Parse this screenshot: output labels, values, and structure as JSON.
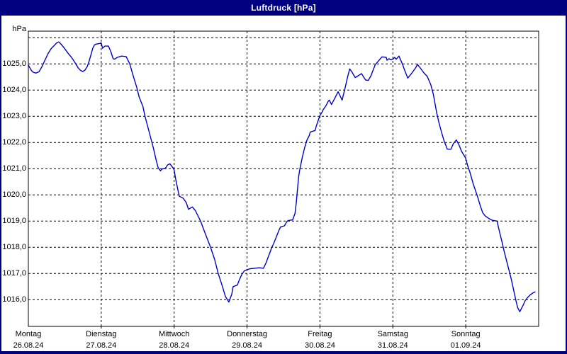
{
  "window": {
    "title": "Luftdruck [hPa]"
  },
  "colors": {
    "frame": "#000080",
    "title_text": "#FFFFFF",
    "background": "#FFFFFF",
    "plot_border": "#000000",
    "grid": "#000000",
    "text": "#000000",
    "curve": "#0000CD"
  },
  "chart_data": {
    "type": "line",
    "title": "Luftdruck [hPa]",
    "unit_label": "hPa",
    "ylabel": "hPa",
    "xlabel": "",
    "ylim": [
      1015.0,
      1026.25
    ],
    "x_range_hours": [
      0,
      168
    ],
    "grid": "dashed",
    "legend": "none",
    "y_gridlines": [
      1026,
      1025,
      1024,
      1023,
      1022,
      1021,
      1020,
      1019,
      1018,
      1017,
      1016
    ],
    "y_ticks": [
      {
        "value": 1025,
        "label": "1025,0"
      },
      {
        "value": 1024,
        "label": "1024,0"
      },
      {
        "value": 1023,
        "label": "1023,0"
      },
      {
        "value": 1022,
        "label": "1022,0"
      },
      {
        "value": 1021,
        "label": "1021,0"
      },
      {
        "value": 1020,
        "label": "1020,0"
      },
      {
        "value": 1019,
        "label": "1019,0"
      },
      {
        "value": 1018,
        "label": "1018,0"
      },
      {
        "value": 1017,
        "label": "1017,0"
      },
      {
        "value": 1016,
        "label": "1016,0"
      }
    ],
    "x_ticks": [
      {
        "day_index": 0,
        "weekday": "Montag",
        "date": "26.08.24"
      },
      {
        "day_index": 1,
        "weekday": "Dienstag",
        "date": "27.08.24"
      },
      {
        "day_index": 2,
        "weekday": "Mittwoch",
        "date": "28.08.24"
      },
      {
        "day_index": 3,
        "weekday": "Donnerstag",
        "date": "29.08.24"
      },
      {
        "day_index": 4,
        "weekday": "Freitag",
        "date": "30.08.24"
      },
      {
        "day_index": 5,
        "weekday": "Samstag",
        "date": "31.08.24"
      },
      {
        "day_index": 6,
        "weekday": "Sonntag",
        "date": "01.09.24"
      }
    ],
    "series": [
      {
        "name": "Luftdruck",
        "unit": "hPa",
        "color": "#0000CD",
        "points": [
          [
            0,
            1024.95
          ],
          [
            1,
            1024.75
          ],
          [
            1.6,
            1024.68
          ],
          [
            2.5,
            1024.65
          ],
          [
            3.5,
            1024.7
          ],
          [
            4.5,
            1024.9
          ],
          [
            5.5,
            1025.15
          ],
          [
            6.5,
            1025.4
          ],
          [
            7.5,
            1025.58
          ],
          [
            8.5,
            1025.7
          ],
          [
            9.3,
            1025.8
          ],
          [
            10,
            1025.84
          ],
          [
            10.8,
            1025.75
          ],
          [
            12,
            1025.58
          ],
          [
            13,
            1025.42
          ],
          [
            14,
            1025.28
          ],
          [
            14.8,
            1025.15
          ],
          [
            15.6,
            1025.0
          ],
          [
            16.4,
            1024.85
          ],
          [
            17.2,
            1024.75
          ],
          [
            17.9,
            1024.71
          ],
          [
            18.6,
            1024.76
          ],
          [
            19.4,
            1024.9
          ],
          [
            20,
            1025.1
          ],
          [
            20.6,
            1025.35
          ],
          [
            21.2,
            1025.6
          ],
          [
            21.8,
            1025.73
          ],
          [
            22.5,
            1025.76
          ],
          [
            23.4,
            1025.78
          ],
          [
            24,
            1025.8
          ],
          [
            24.4,
            1025.6
          ],
          [
            25.2,
            1025.68
          ],
          [
            26.4,
            1025.68
          ],
          [
            27.2,
            1025.45
          ],
          [
            27.9,
            1025.2
          ],
          [
            28.4,
            1025.18
          ],
          [
            29.3,
            1025.25
          ],
          [
            30.7,
            1025.3
          ],
          [
            32.2,
            1025.28
          ],
          [
            33.4,
            1025.0
          ],
          [
            34.5,
            1024.55
          ],
          [
            35.7,
            1024.1
          ],
          [
            36.5,
            1023.73
          ],
          [
            37.7,
            1023.38
          ],
          [
            38.4,
            1023.0
          ],
          [
            39.6,
            1022.48
          ],
          [
            40.4,
            1022.13
          ],
          [
            41.2,
            1021.77
          ],
          [
            41.9,
            1021.41
          ],
          [
            42.7,
            1021.05
          ],
          [
            43.5,
            1020.92
          ],
          [
            43.9,
            1020.98
          ],
          [
            45.1,
            1021.02
          ],
          [
            45.8,
            1021.14
          ],
          [
            46.6,
            1021.19
          ],
          [
            47.8,
            1021.0
          ],
          [
            48,
            1020.95
          ],
          [
            48.5,
            1020.6
          ],
          [
            49.4,
            1020.1
          ],
          [
            49.7,
            1019.95
          ],
          [
            51,
            1019.87
          ],
          [
            52,
            1019.7
          ],
          [
            52.7,
            1019.45
          ],
          [
            54,
            1019.54
          ],
          [
            55,
            1019.4
          ],
          [
            56.7,
            1019.0
          ],
          [
            58.3,
            1018.5
          ],
          [
            60,
            1018.0
          ],
          [
            61.3,
            1017.55
          ],
          [
            62.5,
            1017.0
          ],
          [
            63.9,
            1016.5
          ],
          [
            64.9,
            1016.12
          ],
          [
            66,
            1015.91
          ],
          [
            67,
            1016.22
          ],
          [
            67.4,
            1016.5
          ],
          [
            68.8,
            1016.56
          ],
          [
            69.5,
            1016.77
          ],
          [
            70.3,
            1016.97
          ],
          [
            71.1,
            1017.1
          ],
          [
            72,
            1017.15
          ],
          [
            73,
            1017.18
          ],
          [
            74.5,
            1017.2
          ],
          [
            76,
            1017.22
          ],
          [
            77.4,
            1017.2
          ],
          [
            78.3,
            1017.42
          ],
          [
            79.2,
            1017.7
          ],
          [
            80,
            1017.95
          ],
          [
            80.9,
            1018.18
          ],
          [
            82,
            1018.5
          ],
          [
            82.7,
            1018.7
          ],
          [
            83.1,
            1018.78
          ],
          [
            84.3,
            1018.82
          ],
          [
            85.1,
            1018.98
          ],
          [
            85.5,
            1019.02
          ],
          [
            87,
            1019.05
          ],
          [
            87.8,
            1019.3
          ],
          [
            88.2,
            1019.7
          ],
          [
            88.6,
            1020.2
          ],
          [
            89.0,
            1020.7
          ],
          [
            89.3,
            1020.93
          ],
          [
            90.1,
            1021.38
          ],
          [
            90.9,
            1021.78
          ],
          [
            91.7,
            1022.09
          ],
          [
            92.5,
            1022.27
          ],
          [
            92.8,
            1022.4
          ],
          [
            94.4,
            1022.46
          ],
          [
            94.8,
            1022.63
          ],
          [
            95.6,
            1022.9
          ],
          [
            96,
            1023.03
          ],
          [
            96.7,
            1023.16
          ],
          [
            97.1,
            1023.26
          ],
          [
            97.9,
            1023.39
          ],
          [
            98.7,
            1023.57
          ],
          [
            99.1,
            1023.62
          ],
          [
            99.8,
            1023.45
          ],
          [
            100.7,
            1023.65
          ],
          [
            102,
            1023.94
          ],
          [
            103.3,
            1023.62
          ],
          [
            104.2,
            1024.05
          ],
          [
            105.1,
            1024.5
          ],
          [
            105.8,
            1024.81
          ],
          [
            106.5,
            1024.7
          ],
          [
            107.6,
            1024.48
          ],
          [
            108.6,
            1024.55
          ],
          [
            109.7,
            1024.63
          ],
          [
            111,
            1024.39
          ],
          [
            111.9,
            1024.37
          ],
          [
            112.8,
            1024.55
          ],
          [
            114.2,
            1024.97
          ],
          [
            115,
            1025.08
          ],
          [
            115.9,
            1025.2
          ],
          [
            116.4,
            1025.27
          ],
          [
            117.8,
            1025.25
          ],
          [
            118.1,
            1025.14
          ],
          [
            118.7,
            1025.2
          ],
          [
            119.3,
            1025.16
          ],
          [
            120,
            1025.18
          ],
          [
            120.6,
            1025.25
          ],
          [
            121.1,
            1025.18
          ],
          [
            122,
            1025.3
          ],
          [
            123.2,
            1024.98
          ],
          [
            123.8,
            1024.78
          ],
          [
            124.9,
            1024.46
          ],
          [
            126.3,
            1024.66
          ],
          [
            127.5,
            1024.85
          ],
          [
            128.1,
            1024.98
          ],
          [
            129,
            1024.85
          ],
          [
            130.2,
            1024.66
          ],
          [
            131.3,
            1024.53
          ],
          [
            132.5,
            1024.2
          ],
          [
            133.3,
            1023.85
          ],
          [
            134.5,
            1023.1
          ],
          [
            135.2,
            1022.75
          ],
          [
            136,
            1022.4
          ],
          [
            136.9,
            1022.05
          ],
          [
            137.6,
            1021.85
          ],
          [
            137.9,
            1021.75
          ],
          [
            139.1,
            1021.74
          ],
          [
            139.9,
            1021.95
          ],
          [
            140.9,
            1022.1
          ],
          [
            141.8,
            1021.9
          ],
          [
            142.6,
            1021.67
          ],
          [
            144,
            1021.4
          ],
          [
            144.6,
            1021.13
          ],
          [
            145.4,
            1020.86
          ],
          [
            146.5,
            1020.4
          ],
          [
            147.7,
            1020.0
          ],
          [
            148.9,
            1019.55
          ],
          [
            149.6,
            1019.32
          ],
          [
            150.4,
            1019.2
          ],
          [
            151.6,
            1019.1
          ],
          [
            152.8,
            1019.03
          ],
          [
            154.3,
            1019.0
          ],
          [
            155.1,
            1018.6
          ],
          [
            155.9,
            1018.23
          ],
          [
            156.6,
            1017.87
          ],
          [
            157.4,
            1017.5
          ],
          [
            158.2,
            1017.14
          ],
          [
            159,
            1016.78
          ],
          [
            159.7,
            1016.41
          ],
          [
            160.5,
            1015.97
          ],
          [
            161.1,
            1015.7
          ],
          [
            161.8,
            1015.54
          ],
          [
            162.9,
            1015.79
          ],
          [
            163.6,
            1015.97
          ],
          [
            164.4,
            1016.09
          ],
          [
            165.2,
            1016.18
          ],
          [
            166,
            1016.25
          ],
          [
            166.8,
            1016.3
          ]
        ]
      }
    ]
  }
}
